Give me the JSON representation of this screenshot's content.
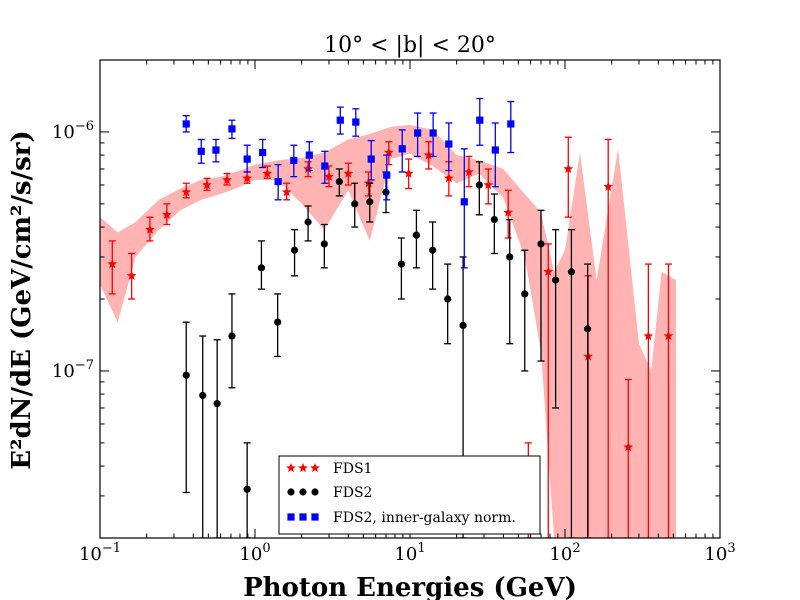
{
  "chart_data": {
    "type": "scatter",
    "title": "10° < |b| < 20°",
    "xlabel": "Photon Energies (GeV)",
    "ylabel": "E²dN/dE (GeV/cm²/s/sr)",
    "xscale": "log",
    "yscale": "log",
    "xlim": [
      0.1,
      1000
    ],
    "ylim": [
      2e-08,
      2e-06
    ],
    "x_tick_labels": [
      "10^-1",
      "10^0",
      "10^1",
      "10^2",
      "10^3"
    ],
    "y_tick_labels": [
      "10^-7",
      "10^-6"
    ],
    "legend_position": "lower-center",
    "band": {
      "color": "#ffb3b3",
      "x": [
        0.1,
        0.13,
        0.17,
        0.24,
        0.33,
        0.45,
        0.6,
        0.8,
        1.0,
        1.4,
        2.0,
        2.8,
        4.0,
        5.5,
        7.5,
        10,
        14,
        20,
        28,
        40,
        55,
        70,
        85,
        100,
        125,
        160,
        220,
        300,
        360,
        420,
        520
      ],
      "upper": [
        4.4e-07,
        3.8e-07,
        4.2e-07,
        5.2e-07,
        5.8e-07,
        6.3e-07,
        6.5e-07,
        6.9e-07,
        7.3e-07,
        7.6e-07,
        7.8e-07,
        8.2e-07,
        9.3e-07,
        9.8e-07,
        1.05e-06,
        1.07e-06,
        1.02e-06,
        8e-07,
        7.6e-07,
        7e-07,
        5.5e-07,
        4.6e-07,
        2.6e-07,
        3.2e-07,
        8.2e-07,
        2.4e-07,
        8.5e-07,
        1.3e-07,
        1e-07,
        2.6e-07,
        2.4e-07
      ],
      "lower": [
        2.3e-07,
        1.6e-07,
        3e-07,
        3.9e-07,
        4.7e-07,
        5.2e-07,
        5.5e-07,
        5.9e-07,
        6.3e-07,
        6.3e-07,
        5e-07,
        3.9e-07,
        5.7e-07,
        3.5e-07,
        7.7e-07,
        8.1e-07,
        7.2e-07,
        6.1e-07,
        6.7e-07,
        5.3e-07,
        3e-07,
        1.2e-07,
        2e-08,
        2e-08,
        2e-08,
        2e-08,
        2e-08,
        2e-08,
        2e-08,
        2e-08,
        2e-08
      ]
    },
    "series": [
      {
        "name": "FDS1",
        "marker": "star",
        "color": "#ff0000",
        "x": [
          0.12,
          0.16,
          0.21,
          0.27,
          0.36,
          0.49,
          0.66,
          0.89,
          1.2,
          1.6,
          2.2,
          3.0,
          4.0,
          5.4,
          7.3,
          9.8,
          13.2,
          17.8,
          24,
          32,
          43,
          58,
          78,
          105,
          141,
          190,
          256,
          345,
          465
        ],
        "y": [
          2.8e-07,
          2.5e-07,
          3.9e-07,
          4.5e-07,
          5.6e-07,
          6e-07,
          6.3e-07,
          6.4e-07,
          6.7e-07,
          5.6e-07,
          7e-07,
          6.5e-07,
          6.7e-07,
          6.1e-07,
          8.2e-07,
          6.7e-07,
          8e-07,
          6.4e-07,
          6.8e-07,
          6e-07,
          4.6e-07,
          2.5e-08,
          2.6e-07,
          7e-07,
          1.15e-07,
          5.9e-07,
          4.8e-08,
          1.4e-07,
          1.4e-07
        ],
        "yerr_low": [
          2.1e-07,
          2e-07,
          3.5e-07,
          4.1e-07,
          5.3e-07,
          5.7e-07,
          6e-07,
          6.1e-07,
          6.4e-07,
          5.2e-07,
          6.5e-07,
          5.9e-07,
          6e-07,
          5.4e-07,
          7.3e-07,
          5.8e-07,
          7e-07,
          5.4e-07,
          5.9e-07,
          5e-07,
          3.6e-07,
          2e-08,
          2e-08,
          4.4e-07,
          2e-08,
          2e-08,
          2e-08,
          2e-08,
          2e-08
        ],
        "yerr_high": [
          3.5e-07,
          3.1e-07,
          4.4e-07,
          5e-07,
          6.1e-07,
          6.4e-07,
          6.7e-07,
          6.8e-07,
          7.2e-07,
          6.1e-07,
          7.5e-07,
          7.2e-07,
          7.4e-07,
          6.8e-07,
          9.1e-07,
          7.7e-07,
          9.1e-07,
          7.5e-07,
          7.9e-07,
          7e-07,
          5.7e-07,
          5e-08,
          3.4e-07,
          9.5e-07,
          2.5e-07,
          9.3e-07,
          9.2e-08,
          2.8e-07,
          2.8e-07
        ]
      },
      {
        "name": "FDS2",
        "marker": "circle",
        "color": "#000000",
        "x": [
          0.36,
          0.46,
          0.57,
          0.71,
          0.89,
          1.1,
          1.4,
          1.8,
          2.2,
          2.8,
          3.5,
          4.4,
          5.5,
          7.0,
          8.8,
          11,
          14,
          17.5,
          22,
          28,
          35,
          44,
          55,
          70,
          87,
          110,
          140
        ],
        "y": [
          9.6e-08,
          7.9e-08,
          7.3e-08,
          1.4e-07,
          3.2e-08,
          2.7e-07,
          1.6e-07,
          3.2e-07,
          4.2e-07,
          3.4e-07,
          6.2e-07,
          5e-07,
          5.1e-07,
          5.6e-07,
          2.8e-07,
          3.7e-07,
          3.2e-07,
          2e-07,
          1.55e-07,
          6e-07,
          4.3e-07,
          3e-07,
          2.1e-07,
          3.4e-07,
          2.4e-07,
          2.6e-07,
          1.5e-07
        ],
        "yerr_low": [
          3.1e-08,
          2e-08,
          2e-08,
          8.5e-08,
          2e-08,
          2.2e-07,
          1.15e-07,
          2.5e-07,
          3.5e-07,
          2.7e-07,
          5.4e-07,
          4e-07,
          4.2e-07,
          4.6e-07,
          2e-07,
          2.7e-07,
          2.2e-07,
          1.3e-07,
          2e-08,
          4.5e-07,
          3.1e-07,
          1.3e-07,
          1e-07,
          1.1e-07,
          7e-08,
          2e-08,
          2e-08
        ],
        "yerr_high": [
          1.6e-07,
          1.4e-07,
          1.35e-07,
          2.1e-07,
          5e-08,
          3.5e-07,
          2.1e-07,
          3.9e-07,
          4.9e-07,
          4.1e-07,
          7e-07,
          6.1e-07,
          6.1e-07,
          6.8e-07,
          3.6e-07,
          4.7e-07,
          4.2e-07,
          2.8e-07,
          3e-07,
          7.5e-07,
          5.5e-07,
          4.3e-07,
          3.2e-07,
          4.7e-07,
          3.9e-07,
          3.9e-07,
          2.8e-07
        ]
      },
      {
        "name": "FDS2, inner-galaxy norm.",
        "marker": "square",
        "color": "#0000ff",
        "x": [
          0.36,
          0.45,
          0.56,
          0.71,
          0.89,
          1.12,
          1.41,
          1.78,
          2.24,
          2.82,
          3.55,
          4.47,
          5.62,
          7.08,
          8.91,
          11.2,
          14.1,
          17.8,
          22.4,
          28.2,
          35.5,
          44.7
        ],
        "y": [
          1.08e-06,
          8.3e-07,
          8.4e-07,
          1.03e-06,
          7.7e-07,
          8.2e-07,
          6.2e-07,
          7.6e-07,
          8e-07,
          7.2e-07,
          1.12e-06,
          1.1e-06,
          7.7e-07,
          6.6e-07,
          8.5e-07,
          9.9e-07,
          9.9e-07,
          8.9e-07,
          5.1e-07,
          1.12e-06,
          8.4e-07,
          1.08e-06
        ],
        "yerr_low": [
          1e-06,
          7.4e-07,
          7.5e-07,
          9.4e-07,
          6.8e-07,
          7.1e-07,
          5.2e-07,
          6.5e-07,
          6.9e-07,
          6.1e-07,
          9.8e-07,
          9.6e-07,
          6.3e-07,
          5.2e-07,
          6.8e-07,
          7.9e-07,
          7.9e-07,
          6.9e-07,
          2.7e-07,
          8.8e-07,
          5.9e-07,
          8.2e-07
        ],
        "yerr_high": [
          1.17e-06,
          9.3e-07,
          9.3e-07,
          1.12e-06,
          8.8e-07,
          9.3e-07,
          7.3e-07,
          8.8e-07,
          9.1e-07,
          8.3e-07,
          1.27e-06,
          1.25e-06,
          9.2e-07,
          8e-07,
          1.02e-06,
          1.2e-06,
          1.2e-06,
          1.09e-06,
          8.5e-07,
          1.38e-06,
          1.09e-06,
          1.34e-06
        ]
      }
    ]
  }
}
